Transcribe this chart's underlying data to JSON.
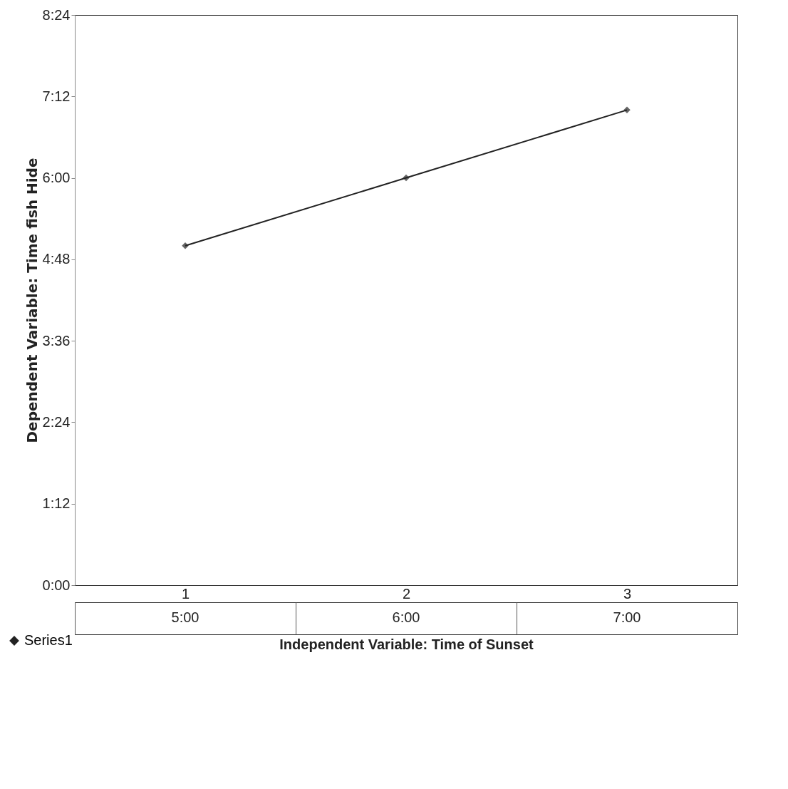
{
  "chart_data": {
    "type": "line",
    "xlabel": "Independent Variable: Time of Sunset",
    "ylabel": "Dependent Variable: Time fish Hide",
    "categories": [
      "1",
      "2",
      "3"
    ],
    "series": [
      {
        "name": "Series1",
        "color": "#222222",
        "values": [
          5,
          6,
          7
        ],
        "value_labels": [
          "5:00",
          "6:00",
          "7:00"
        ]
      }
    ],
    "ylim": [
      0,
      8.4
    ],
    "yticks": [
      {
        "value": 0,
        "label": "0:00"
      },
      {
        "value": 1.2,
        "label": "1:12"
      },
      {
        "value": 2.4,
        "label": "2:24"
      },
      {
        "value": 3.6,
        "label": "3:36"
      },
      {
        "value": 4.8,
        "label": "4:48"
      },
      {
        "value": 6,
        "label": "6:00"
      },
      {
        "value": 7.2,
        "label": "7:12"
      },
      {
        "value": 8.4,
        "label": "8:24"
      }
    ],
    "grid": false,
    "legend": "bottom left",
    "marker": "diamond",
    "line_style": "solid"
  }
}
